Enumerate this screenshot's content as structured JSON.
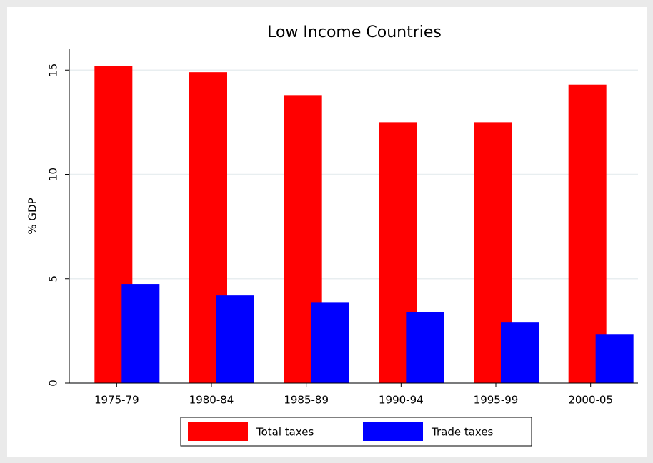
{
  "chart_data": {
    "type": "bar",
    "title": "Low Income Countries",
    "y_label": "% GDP",
    "categories": [
      "1975-79",
      "1980-84",
      "1985-89",
      "1990-94",
      "1995-99",
      "2000-05"
    ],
    "series": [
      {
        "name": "Total taxes",
        "color": "#ff0000",
        "values": [
          15.2,
          14.9,
          13.8,
          12.5,
          12.5,
          14.3
        ]
      },
      {
        "name": "Trade taxes",
        "color": "#0000ff",
        "values": [
          4.75,
          4.2,
          3.85,
          3.4,
          2.9,
          2.35
        ]
      }
    ],
    "ylim": [
      0,
      16
    ],
    "yticks": [
      0,
      5,
      10,
      15
    ],
    "grid": true,
    "legend": "bottom"
  }
}
